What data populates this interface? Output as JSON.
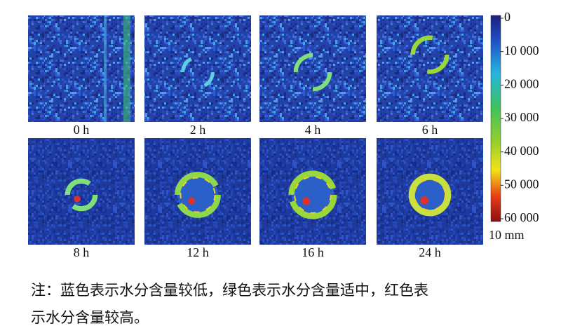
{
  "panels": [
    {
      "label": "0 h"
    },
    {
      "label": "2 h"
    },
    {
      "label": "4 h"
    },
    {
      "label": "6 h"
    },
    {
      "label": "8 h"
    },
    {
      "label": "12 h"
    },
    {
      "label": "16 h"
    },
    {
      "label": "24 h"
    }
  ],
  "colorbar": {
    "ticks": [
      "0",
      "10 000",
      "20 000",
      "30 000",
      "40 000",
      "50 000",
      "60 000"
    ]
  },
  "scale_bar": "10 mm",
  "note": [
    "注：蓝色表示水分含量较低，绿色表示水分含量适中，红色表",
    "示水分含量较高。"
  ]
}
